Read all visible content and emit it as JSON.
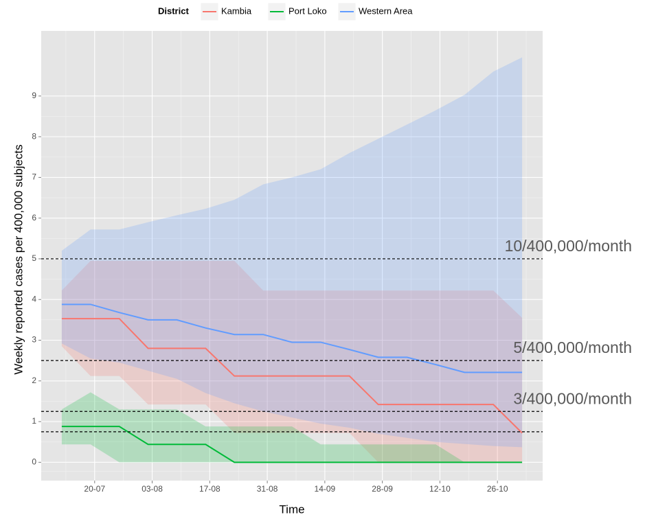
{
  "chart_data": {
    "type": "line",
    "legend_title": "District",
    "xlabel": "Time",
    "ylabel": "Weekly reported cases per 400,000 subjects",
    "x": [
      "12-07",
      "19-07",
      "26-07",
      "02-08",
      "09-08",
      "16-08",
      "23-08",
      "30-08",
      "06-09",
      "13-09",
      "20-09",
      "27-09",
      "04-10",
      "11-10",
      "18-10",
      "25-10",
      "01-11"
    ],
    "xlim": [
      "07-07",
      "06-11"
    ],
    "xticks": [
      "20-07",
      "03-08",
      "17-08",
      "31-08",
      "14-09",
      "28-09",
      "12-10",
      "26-10"
    ],
    "ylim": [
      -0.45,
      10.6
    ],
    "yticks": [
      0,
      1,
      2,
      3,
      4,
      5,
      6,
      7,
      8,
      9
    ],
    "grid": true,
    "legend": "top",
    "series": [
      {
        "name": "Kambia",
        "color": "#f8766d",
        "values": [
          3.53,
          3.53,
          3.53,
          2.8,
          2.8,
          2.8,
          2.12,
          2.12,
          2.12,
          2.12,
          2.12,
          1.42,
          1.42,
          1.42,
          1.42,
          1.42,
          0.72
        ],
        "upper": [
          4.22,
          4.95,
          4.95,
          4.95,
          4.95,
          4.95,
          4.95,
          4.22,
          4.22,
          4.22,
          4.22,
          4.22,
          4.22,
          4.22,
          4.22,
          4.22,
          3.55
        ],
        "lower": [
          2.85,
          2.12,
          2.12,
          1.42,
          1.42,
          1.42,
          0.72,
          0.72,
          0.72,
          0.72,
          0.72,
          0,
          0,
          0,
          0,
          0,
          0
        ]
      },
      {
        "name": "Port Loko",
        "color": "#00ba38",
        "values": [
          0.88,
          0.88,
          0.88,
          0.44,
          0.44,
          0.44,
          0,
          0,
          0,
          0,
          0,
          0,
          0,
          0,
          0,
          0,
          0
        ],
        "upper": [
          1.3,
          1.72,
          1.3,
          1.3,
          1.3,
          0.88,
          0.88,
          0.88,
          0.88,
          0.44,
          0.44,
          0.44,
          0.44,
          0.44,
          0,
          0,
          0
        ],
        "lower": [
          0.44,
          0.44,
          0,
          0,
          0,
          0,
          0,
          0,
          0,
          0,
          0,
          0,
          0,
          0,
          0,
          0,
          0
        ]
      },
      {
        "name": "Western Area",
        "color": "#619cff",
        "values": [
          3.88,
          3.88,
          3.68,
          3.5,
          3.5,
          3.3,
          3.14,
          3.14,
          2.95,
          2.95,
          2.77,
          2.58,
          2.58,
          2.4,
          2.21,
          2.21,
          2.21
        ],
        "upper": [
          5.2,
          5.72,
          5.72,
          5.9,
          6.07,
          6.23,
          6.45,
          6.83,
          7.0,
          7.2,
          7.6,
          7.95,
          8.3,
          8.65,
          9.03,
          9.6,
          9.95
        ],
        "lower": [
          2.92,
          2.55,
          2.45,
          2.25,
          2.05,
          1.7,
          1.45,
          1.25,
          1.1,
          0.95,
          0.85,
          0.7,
          0.6,
          0.5,
          0.45,
          0.4,
          0.37
        ]
      }
    ],
    "hlines": [
      {
        "value": 5,
        "label": "10/400,000/month"
      },
      {
        "value": 2.5,
        "label": "5/400,000/month"
      },
      {
        "value": 1.25,
        "label": "3/400,000/month"
      },
      {
        "value": 0.75
      }
    ]
  }
}
